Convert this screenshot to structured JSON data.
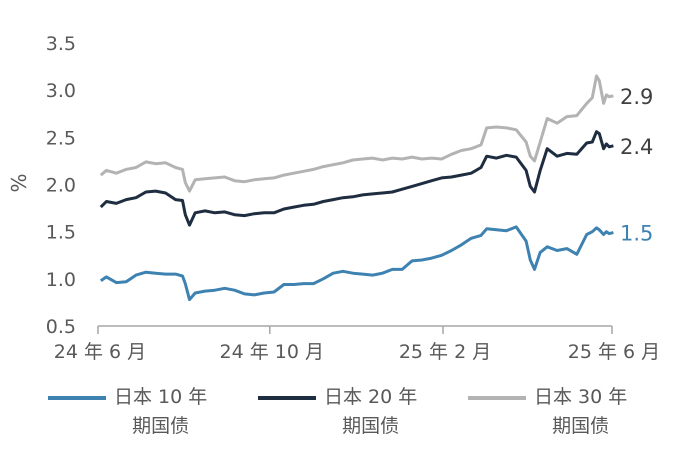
{
  "chart_data": {
    "type": "line",
    "ylabel": "%",
    "ylim": [
      0.5,
      3.5
    ],
    "yticks": [
      "3.5",
      "3.0",
      "2.5",
      "2.0",
      "1.5",
      "1.0",
      "0.5"
    ],
    "xlim": [
      "2024-06-01",
      "2025-06-01"
    ],
    "xticks": [
      {
        "date": "2024-06-01",
        "label": "24 年 6 月"
      },
      {
        "date": "2024-10-01",
        "label": "24 年 10 月"
      },
      {
        "date": "2025-02-01",
        "label": "25 年 2 月"
      },
      {
        "date": "2025-06-01",
        "label": "25 年 6 月"
      }
    ],
    "series": [
      {
        "name": "日本 30 年期国债",
        "legend_lines": [
          "日本 30 年",
          "期国债"
        ],
        "color": "#b3b3b3",
        "end_label": "2.9",
        "points": [
          [
            "2024-06-03",
            2.1
          ],
          [
            "2024-06-07",
            2.15
          ],
          [
            "2024-06-14",
            2.12
          ],
          [
            "2024-06-21",
            2.16
          ],
          [
            "2024-06-28",
            2.18
          ],
          [
            "2024-07-05",
            2.24
          ],
          [
            "2024-07-12",
            2.22
          ],
          [
            "2024-07-19",
            2.23
          ],
          [
            "2024-07-26",
            2.18
          ],
          [
            "2024-07-31",
            2.16
          ],
          [
            "2024-08-02",
            2.02
          ],
          [
            "2024-08-05",
            1.93
          ],
          [
            "2024-08-09",
            2.05
          ],
          [
            "2024-08-16",
            2.06
          ],
          [
            "2024-08-23",
            2.07
          ],
          [
            "2024-08-30",
            2.08
          ],
          [
            "2024-09-06",
            2.04
          ],
          [
            "2024-09-13",
            2.03
          ],
          [
            "2024-09-20",
            2.05
          ],
          [
            "2024-09-27",
            2.06
          ],
          [
            "2024-10-04",
            2.07
          ],
          [
            "2024-10-11",
            2.1
          ],
          [
            "2024-10-18",
            2.12
          ],
          [
            "2024-10-25",
            2.14
          ],
          [
            "2024-11-01",
            2.16
          ],
          [
            "2024-11-08",
            2.19
          ],
          [
            "2024-11-15",
            2.21
          ],
          [
            "2024-11-22",
            2.23
          ],
          [
            "2024-11-29",
            2.26
          ],
          [
            "2024-12-06",
            2.27
          ],
          [
            "2024-12-13",
            2.28
          ],
          [
            "2024-12-20",
            2.26
          ],
          [
            "2024-12-27",
            2.28
          ],
          [
            "2025-01-03",
            2.27
          ],
          [
            "2025-01-10",
            2.29
          ],
          [
            "2025-01-17",
            2.27
          ],
          [
            "2025-01-24",
            2.28
          ],
          [
            "2025-01-31",
            2.27
          ],
          [
            "2025-02-07",
            2.32
          ],
          [
            "2025-02-14",
            2.36
          ],
          [
            "2025-02-21",
            2.38
          ],
          [
            "2025-02-28",
            2.42
          ],
          [
            "2025-03-04",
            2.6
          ],
          [
            "2025-03-11",
            2.61
          ],
          [
            "2025-03-18",
            2.6
          ],
          [
            "2025-03-25",
            2.58
          ],
          [
            "2025-04-01",
            2.45
          ],
          [
            "2025-04-04",
            2.3
          ],
          [
            "2025-04-07",
            2.25
          ],
          [
            "2025-04-11",
            2.45
          ],
          [
            "2025-04-16",
            2.7
          ],
          [
            "2025-04-23",
            2.65
          ],
          [
            "2025-04-30",
            2.72
          ],
          [
            "2025-05-07",
            2.73
          ],
          [
            "2025-05-14",
            2.86
          ],
          [
            "2025-05-18",
            2.92
          ],
          [
            "2025-05-21",
            3.15
          ],
          [
            "2025-05-23",
            3.1
          ],
          [
            "2025-05-26",
            2.86
          ],
          [
            "2025-05-28",
            2.95
          ],
          [
            "2025-05-30",
            2.93
          ],
          [
            "2025-06-02",
            2.94
          ]
        ]
      },
      {
        "name": "日本 20 年期国债",
        "legend_lines": [
          "日本 20 年",
          "期国债"
        ],
        "color": "#1f2d40",
        "end_label": "2.4",
        "points": [
          [
            "2024-06-03",
            1.76
          ],
          [
            "2024-06-07",
            1.82
          ],
          [
            "2024-06-14",
            1.8
          ],
          [
            "2024-06-21",
            1.84
          ],
          [
            "2024-06-28",
            1.86
          ],
          [
            "2024-07-05",
            1.92
          ],
          [
            "2024-07-12",
            1.93
          ],
          [
            "2024-07-19",
            1.91
          ],
          [
            "2024-07-26",
            1.84
          ],
          [
            "2024-07-31",
            1.83
          ],
          [
            "2024-08-02",
            1.68
          ],
          [
            "2024-08-05",
            1.57
          ],
          [
            "2024-08-09",
            1.7
          ],
          [
            "2024-08-16",
            1.72
          ],
          [
            "2024-08-23",
            1.7
          ],
          [
            "2024-08-30",
            1.71
          ],
          [
            "2024-09-06",
            1.68
          ],
          [
            "2024-09-13",
            1.67
          ],
          [
            "2024-09-20",
            1.69
          ],
          [
            "2024-09-27",
            1.7
          ],
          [
            "2024-10-04",
            1.7
          ],
          [
            "2024-10-11",
            1.74
          ],
          [
            "2024-10-18",
            1.76
          ],
          [
            "2024-10-25",
            1.78
          ],
          [
            "2024-11-01",
            1.79
          ],
          [
            "2024-11-08",
            1.82
          ],
          [
            "2024-11-15",
            1.84
          ],
          [
            "2024-11-22",
            1.86
          ],
          [
            "2024-11-29",
            1.87
          ],
          [
            "2024-12-06",
            1.89
          ],
          [
            "2024-12-13",
            1.9
          ],
          [
            "2024-12-20",
            1.91
          ],
          [
            "2024-12-27",
            1.92
          ],
          [
            "2025-01-03",
            1.95
          ],
          [
            "2025-01-10",
            1.98
          ],
          [
            "2025-01-17",
            2.01
          ],
          [
            "2025-01-24",
            2.04
          ],
          [
            "2025-01-31",
            2.07
          ],
          [
            "2025-02-07",
            2.08
          ],
          [
            "2025-02-14",
            2.1
          ],
          [
            "2025-02-21",
            2.12
          ],
          [
            "2025-02-28",
            2.18
          ],
          [
            "2025-03-04",
            2.3
          ],
          [
            "2025-03-11",
            2.28
          ],
          [
            "2025-03-18",
            2.31
          ],
          [
            "2025-03-25",
            2.29
          ],
          [
            "2025-04-01",
            2.15
          ],
          [
            "2025-04-04",
            1.98
          ],
          [
            "2025-04-07",
            1.92
          ],
          [
            "2025-04-11",
            2.15
          ],
          [
            "2025-04-16",
            2.38
          ],
          [
            "2025-04-23",
            2.3
          ],
          [
            "2025-04-30",
            2.33
          ],
          [
            "2025-05-07",
            2.32
          ],
          [
            "2025-05-14",
            2.44
          ],
          [
            "2025-05-18",
            2.45
          ],
          [
            "2025-05-21",
            2.56
          ],
          [
            "2025-05-23",
            2.54
          ],
          [
            "2025-05-26",
            2.38
          ],
          [
            "2025-05-28",
            2.43
          ],
          [
            "2025-05-30",
            2.4
          ],
          [
            "2025-06-02",
            2.41
          ]
        ]
      },
      {
        "name": "日本 10 年期国债",
        "legend_lines": [
          "日本 10 年",
          "期国债"
        ],
        "color": "#3e82b2",
        "end_label": "1.5",
        "points": [
          [
            "2024-06-03",
            0.98
          ],
          [
            "2024-06-07",
            1.02
          ],
          [
            "2024-06-14",
            0.96
          ],
          [
            "2024-06-21",
            0.97
          ],
          [
            "2024-06-28",
            1.04
          ],
          [
            "2024-07-05",
            1.07
          ],
          [
            "2024-07-12",
            1.06
          ],
          [
            "2024-07-19",
            1.05
          ],
          [
            "2024-07-26",
            1.05
          ],
          [
            "2024-07-31",
            1.03
          ],
          [
            "2024-08-02",
            0.95
          ],
          [
            "2024-08-05",
            0.78
          ],
          [
            "2024-08-09",
            0.85
          ],
          [
            "2024-08-16",
            0.87
          ],
          [
            "2024-08-23",
            0.88
          ],
          [
            "2024-08-30",
            0.9
          ],
          [
            "2024-09-06",
            0.88
          ],
          [
            "2024-09-13",
            0.84
          ],
          [
            "2024-09-20",
            0.83
          ],
          [
            "2024-09-27",
            0.85
          ],
          [
            "2024-10-04",
            0.86
          ],
          [
            "2024-10-11",
            0.94
          ],
          [
            "2024-10-18",
            0.94
          ],
          [
            "2024-10-25",
            0.95
          ],
          [
            "2024-11-01",
            0.95
          ],
          [
            "2024-11-08",
            1.0
          ],
          [
            "2024-11-15",
            1.06
          ],
          [
            "2024-11-22",
            1.08
          ],
          [
            "2024-11-29",
            1.06
          ],
          [
            "2024-12-06",
            1.05
          ],
          [
            "2024-12-13",
            1.04
          ],
          [
            "2024-12-20",
            1.06
          ],
          [
            "2024-12-27",
            1.1
          ],
          [
            "2025-01-03",
            1.1
          ],
          [
            "2025-01-10",
            1.19
          ],
          [
            "2025-01-17",
            1.2
          ],
          [
            "2025-01-24",
            1.22
          ],
          [
            "2025-01-31",
            1.25
          ],
          [
            "2025-02-07",
            1.3
          ],
          [
            "2025-02-14",
            1.36
          ],
          [
            "2025-02-21",
            1.43
          ],
          [
            "2025-02-28",
            1.46
          ],
          [
            "2025-03-04",
            1.53
          ],
          [
            "2025-03-11",
            1.52
          ],
          [
            "2025-03-18",
            1.51
          ],
          [
            "2025-03-25",
            1.55
          ],
          [
            "2025-04-01",
            1.4
          ],
          [
            "2025-04-04",
            1.2
          ],
          [
            "2025-04-07",
            1.1
          ],
          [
            "2025-04-11",
            1.28
          ],
          [
            "2025-04-16",
            1.34
          ],
          [
            "2025-04-23",
            1.3
          ],
          [
            "2025-04-30",
            1.32
          ],
          [
            "2025-05-07",
            1.26
          ],
          [
            "2025-05-14",
            1.47
          ],
          [
            "2025-05-18",
            1.5
          ],
          [
            "2025-05-21",
            1.54
          ],
          [
            "2025-05-23",
            1.52
          ],
          [
            "2025-05-26",
            1.47
          ],
          [
            "2025-05-28",
            1.5
          ],
          [
            "2025-05-30",
            1.48
          ],
          [
            "2025-06-02",
            1.49
          ]
        ]
      }
    ]
  }
}
